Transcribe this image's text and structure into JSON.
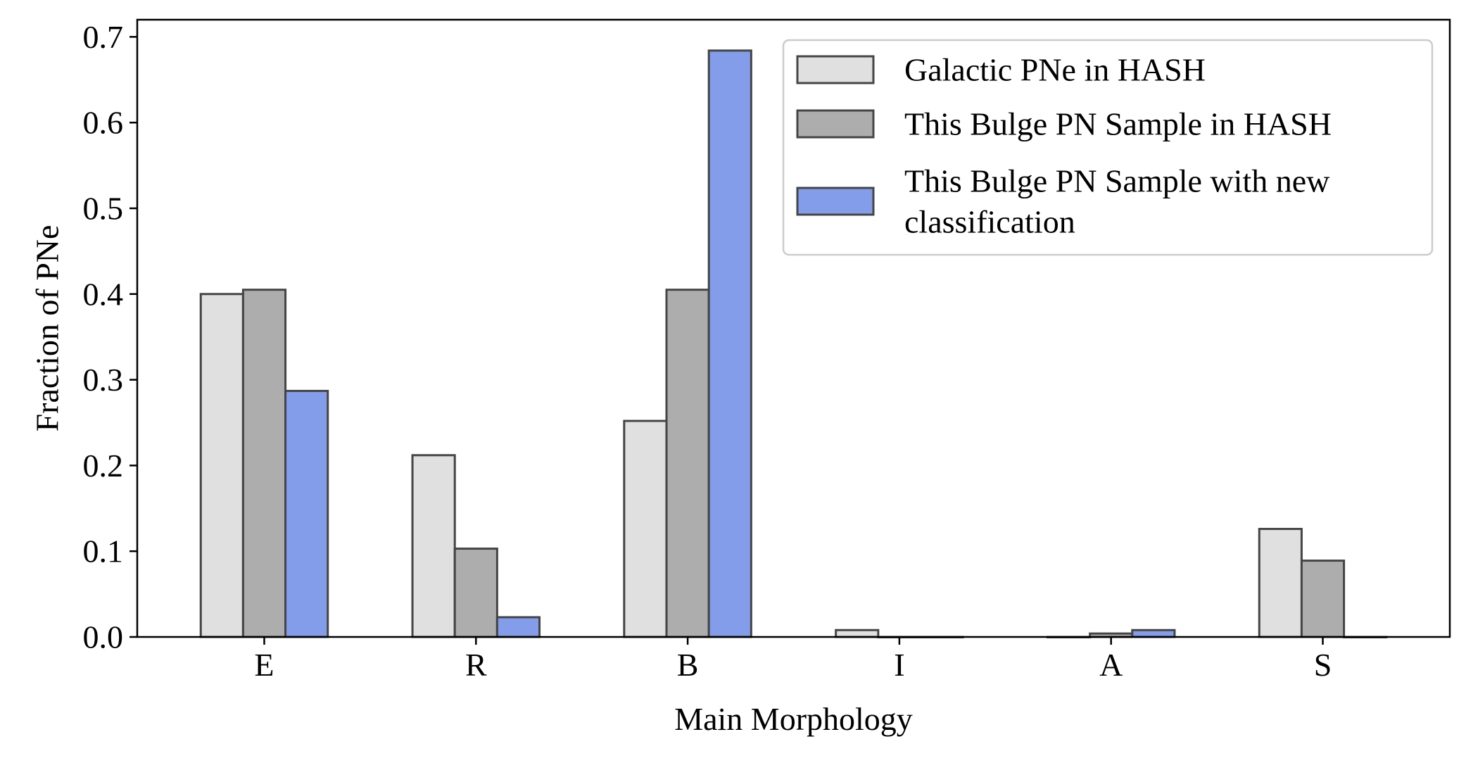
{
  "chart_data": {
    "type": "bar",
    "xlabel": "Main Morphology",
    "ylabel": "Fraction of PNe",
    "categories": [
      "E",
      "R",
      "B",
      "I",
      "A",
      "S"
    ],
    "ylim": [
      0,
      0.72
    ],
    "yticks": [
      "0.0",
      "0.1",
      "0.2",
      "0.3",
      "0.4",
      "0.5",
      "0.6",
      "0.7"
    ],
    "grid": false,
    "legend_position": "top-right",
    "series": [
      {
        "name": "Galactic PNe in HASH",
        "color": "#e0e0e0",
        "values": [
          0.4,
          0.212,
          0.252,
          0.008,
          0.0,
          0.126
        ]
      },
      {
        "name": "This Bulge PN Sample in HASH",
        "color": "#adadad",
        "values": [
          0.405,
          0.103,
          0.405,
          0.0,
          0.004,
          0.089
        ]
      },
      {
        "name": "This Bulge PN Sample with new classification",
        "legend_lines": [
          "This Bulge PN Sample with new",
          "classification"
        ],
        "color": "#839dea",
        "values": [
          0.287,
          0.023,
          0.684,
          0.0,
          0.008,
          0.0
        ]
      }
    ],
    "edge_color": "#454545"
  }
}
